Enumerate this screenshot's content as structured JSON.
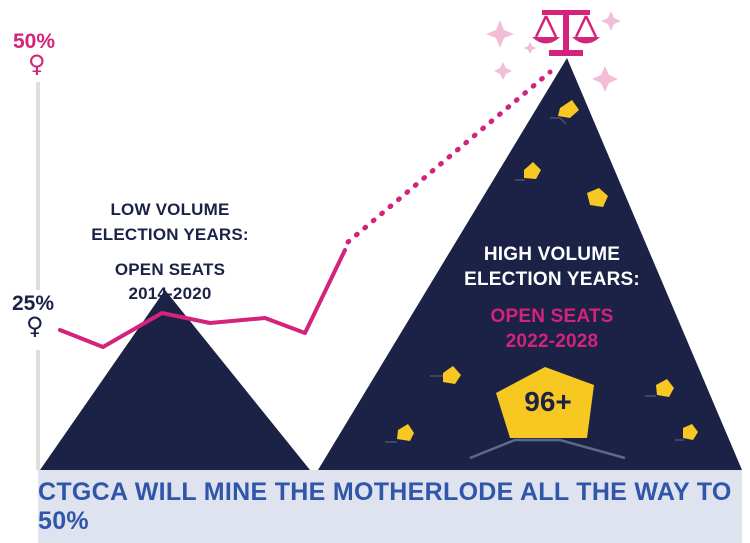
{
  "colors": {
    "navy": "#1b2246",
    "pink": "#d3237a",
    "gold": "#f7c821",
    "banner_bg": "#dfe3ef",
    "banner_text": "#2f56a8",
    "axis": "#dedede"
  },
  "axis": {
    "top_label": "50%",
    "mid_label": "25%",
    "symbol": "♀"
  },
  "low_volume": {
    "title_line1": "LOW VOLUME",
    "title_line2": "ELECTION YEARS:",
    "seats_line1": "OPEN SEATS",
    "seats_line2": "2014-2020"
  },
  "high_volume": {
    "title_line1": "HIGH VOLUME",
    "title_line2": "ELECTION YEARS:",
    "seats_line1": "OPEN SEATS",
    "seats_line2": "2022-2028"
  },
  "badge": {
    "text": "96+"
  },
  "banner": {
    "text": "CTGCA WILL MINE THE MOTHERLODE ALL THE WAY TO 50%"
  },
  "icons": [
    "balance-scale-icon",
    "sparkle-icon",
    "venus-icon",
    "gold-nugget-icon"
  ]
}
